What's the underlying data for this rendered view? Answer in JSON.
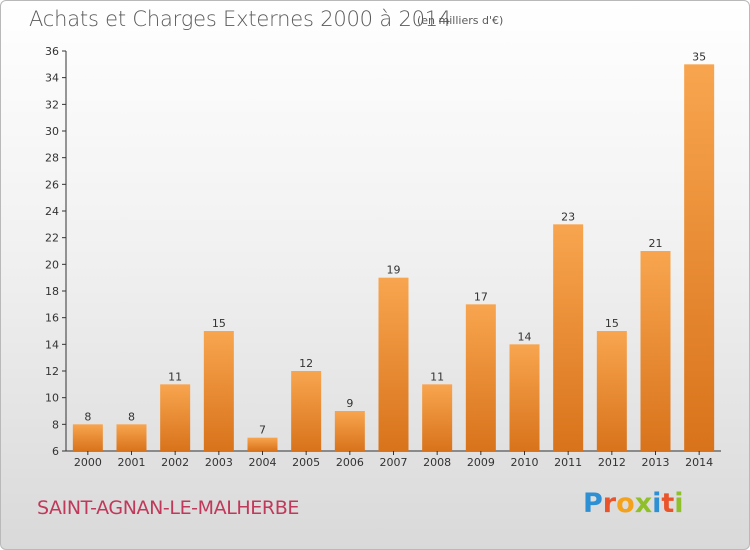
{
  "header": {
    "title": "Achats et Charges Externes 2000 à 2014",
    "unit": "(en milliers d'€)"
  },
  "footer": {
    "place": "SAINT-AGNAN-LE-MALHERBE",
    "logo": [
      "P",
      "r",
      "o",
      "x",
      "i",
      "t",
      "i"
    ]
  },
  "colors": {
    "bar_top": "#f8a54f",
    "bar_bottom": "#d8731b",
    "place_text": "#c0395a"
  },
  "chart_data": {
    "type": "bar",
    "title": "Achats et Charges Externes 2000 à 2014",
    "categories": [
      "2000",
      "2001",
      "2002",
      "2003",
      "2004",
      "2005",
      "2006",
      "2007",
      "2008",
      "2009",
      "2010",
      "2011",
      "2012",
      "2013",
      "2014"
    ],
    "values": [
      8,
      8,
      11,
      15,
      7,
      12,
      9,
      19,
      11,
      17,
      14,
      23,
      15,
      21,
      35
    ],
    "ylim": [
      6,
      36
    ],
    "yticks": [
      6,
      8,
      10,
      12,
      14,
      16,
      18,
      20,
      22,
      24,
      26,
      28,
      30,
      32,
      34,
      36
    ],
    "grid": false,
    "legend": "none"
  }
}
